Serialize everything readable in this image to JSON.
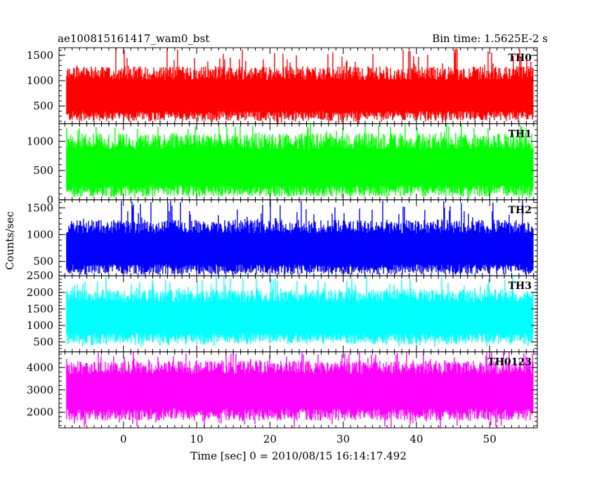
{
  "chart_data": {
    "type": "line",
    "title": "ae100815161417_wam0_bst",
    "subtitle": "Bin time: 1.5625E-2 s",
    "xlabel": "Time [sec] 0 = 2010/08/15 16:14:17.492",
    "ylabel": "Counts/sec",
    "xlim": [
      -8.8,
      56.5
    ],
    "xticks": [
      0,
      10,
      20,
      30,
      40,
      50
    ],
    "x_range_data": [
      -7.8,
      55.9
    ],
    "bin_time": 0.015625,
    "grid": false,
    "legend": "none",
    "panels": [
      {
        "name": "TH0",
        "color": "#ff0000",
        "ylim": [
          150,
          1650
        ],
        "yticks": [
          500,
          1000,
          1500
        ],
        "baseline": 700,
        "typical_low": 300,
        "typical_high": 1150,
        "min": 150,
        "max": 1650
      },
      {
        "name": "TH1",
        "color": "#00ff00",
        "ylim": [
          0,
          1300
        ],
        "yticks": [
          0,
          500,
          1000
        ],
        "baseline": 550,
        "typical_low": 150,
        "typical_high": 1000,
        "min": 20,
        "max": 1300
      },
      {
        "name": "TH2",
        "color": "#0000ff",
        "ylim": [
          230,
          1650
        ],
        "yticks": [
          500,
          1000,
          1500
        ],
        "baseline": 730,
        "typical_low": 350,
        "typical_high": 1150,
        "min": 250,
        "max": 1650
      },
      {
        "name": "TH3",
        "color": "#00ffff",
        "ylim": [
          200,
          2500
        ],
        "yticks": [
          500,
          1000,
          1500,
          2000,
          2500
        ],
        "baseline": 1250,
        "typical_low": 600,
        "typical_high": 1900,
        "min": 350,
        "max": 2500
      },
      {
        "name": "TH0123",
        "color": "#ff00ff",
        "ylim": [
          1300,
          4700
        ],
        "yticks": [
          2000,
          3000,
          4000
        ],
        "baseline": 3000,
        "typical_low": 1900,
        "typical_high": 4000,
        "min": 1300,
        "max": 4700
      }
    ]
  }
}
